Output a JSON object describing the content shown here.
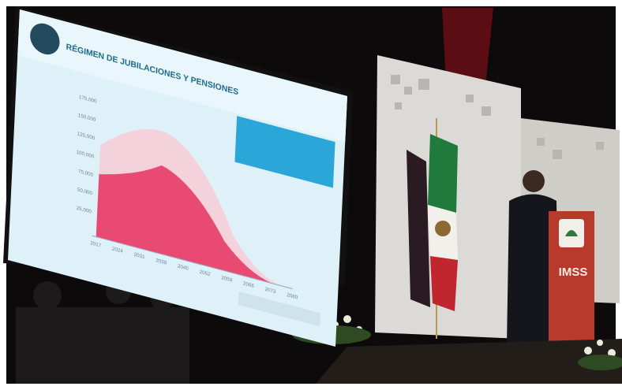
{
  "screen": {
    "title": "RÉGIMEN DE JUBILACIONES Y PENSIONES",
    "y_labels": [
      "175,000",
      "150,000",
      "125,000",
      "100,000",
      "75,000",
      "50,000",
      "25,000"
    ],
    "x_labels": [
      "2017",
      "2024",
      "2031",
      "2038",
      "2045",
      "2052",
      "2059",
      "2066",
      "2073",
      "2080"
    ]
  },
  "podium": {
    "label": "IMSS"
  }
}
